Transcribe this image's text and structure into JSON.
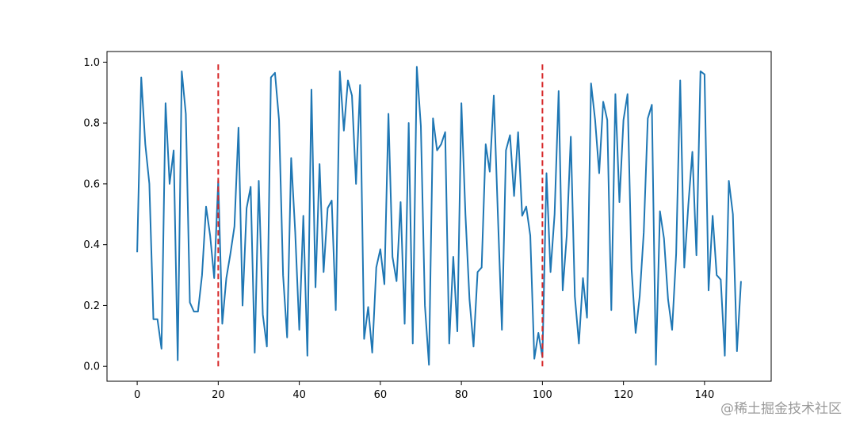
{
  "chart_data": {
    "type": "line",
    "xlim": [
      -7.45,
      156.45
    ],
    "ylim": [
      -0.049,
      1.035
    ],
    "x_ticks": [
      0,
      20,
      40,
      60,
      80,
      100,
      120,
      140
    ],
    "y_ticks": [
      0.0,
      0.2,
      0.4,
      0.6,
      0.8,
      1.0
    ],
    "x_tick_labels": [
      "0",
      "20",
      "40",
      "60",
      "80",
      "100",
      "120",
      "140"
    ],
    "y_tick_labels": [
      "0.0",
      "0.2",
      "0.4",
      "0.6",
      "0.8",
      "1.0"
    ],
    "grid": false,
    "series": [
      {
        "color": "#1f77b4",
        "style": "solid",
        "x_start": 0,
        "x_step": 1,
        "values": [
          0.375,
          0.95,
          0.73,
          0.6,
          0.155,
          0.155,
          0.058,
          0.865,
          0.6,
          0.71,
          0.02,
          0.97,
          0.83,
          0.21,
          0.18,
          0.18,
          0.3,
          0.525,
          0.43,
          0.29,
          0.61,
          0.14,
          0.29,
          0.37,
          0.46,
          0.785,
          0.2,
          0.52,
          0.59,
          0.045,
          0.61,
          0.17,
          0.065,
          0.95,
          0.965,
          0.81,
          0.3,
          0.095,
          0.685,
          0.44,
          0.12,
          0.495,
          0.035,
          0.91,
          0.26,
          0.665,
          0.31,
          0.52,
          0.545,
          0.185,
          0.97,
          0.775,
          0.94,
          0.89,
          0.6,
          0.925,
          0.09,
          0.195,
          0.045,
          0.325,
          0.385,
          0.27,
          0.83,
          0.36,
          0.28,
          0.54,
          0.14,
          0.8,
          0.075,
          0.985,
          0.79,
          0.2,
          0.005,
          0.815,
          0.71,
          0.73,
          0.77,
          0.075,
          0.36,
          0.115,
          0.865,
          0.5,
          0.22,
          0.065,
          0.31,
          0.325,
          0.73,
          0.64,
          0.89,
          0.5,
          0.12,
          0.71,
          0.76,
          0.56,
          0.77,
          0.495,
          0.525,
          0.43,
          0.025,
          0.11,
          0.03,
          0.635,
          0.31,
          0.5,
          0.905,
          0.25,
          0.43,
          0.755,
          0.23,
          0.075,
          0.29,
          0.16,
          0.93,
          0.81,
          0.635,
          0.87,
          0.81,
          0.185,
          0.895,
          0.54,
          0.81,
          0.895,
          0.32,
          0.11,
          0.23,
          0.44,
          0.815,
          0.86,
          0.005,
          0.51,
          0.42,
          0.22,
          0.12,
          0.37,
          0.94,
          0.325,
          0.53,
          0.705,
          0.365,
          0.97,
          0.96,
          0.25,
          0.495,
          0.3,
          0.285,
          0.035,
          0.61,
          0.5,
          0.05,
          0.28
        ]
      }
    ],
    "vlines": [
      {
        "x": 20,
        "y_range": [
          0.0,
          1.0
        ],
        "color": "#d62728",
        "style": "dashed"
      },
      {
        "x": 100,
        "y_range": [
          0.0,
          1.0
        ],
        "color": "#d62728",
        "style": "dashed"
      }
    ]
  },
  "watermark": "@稀土掘金技术社区"
}
